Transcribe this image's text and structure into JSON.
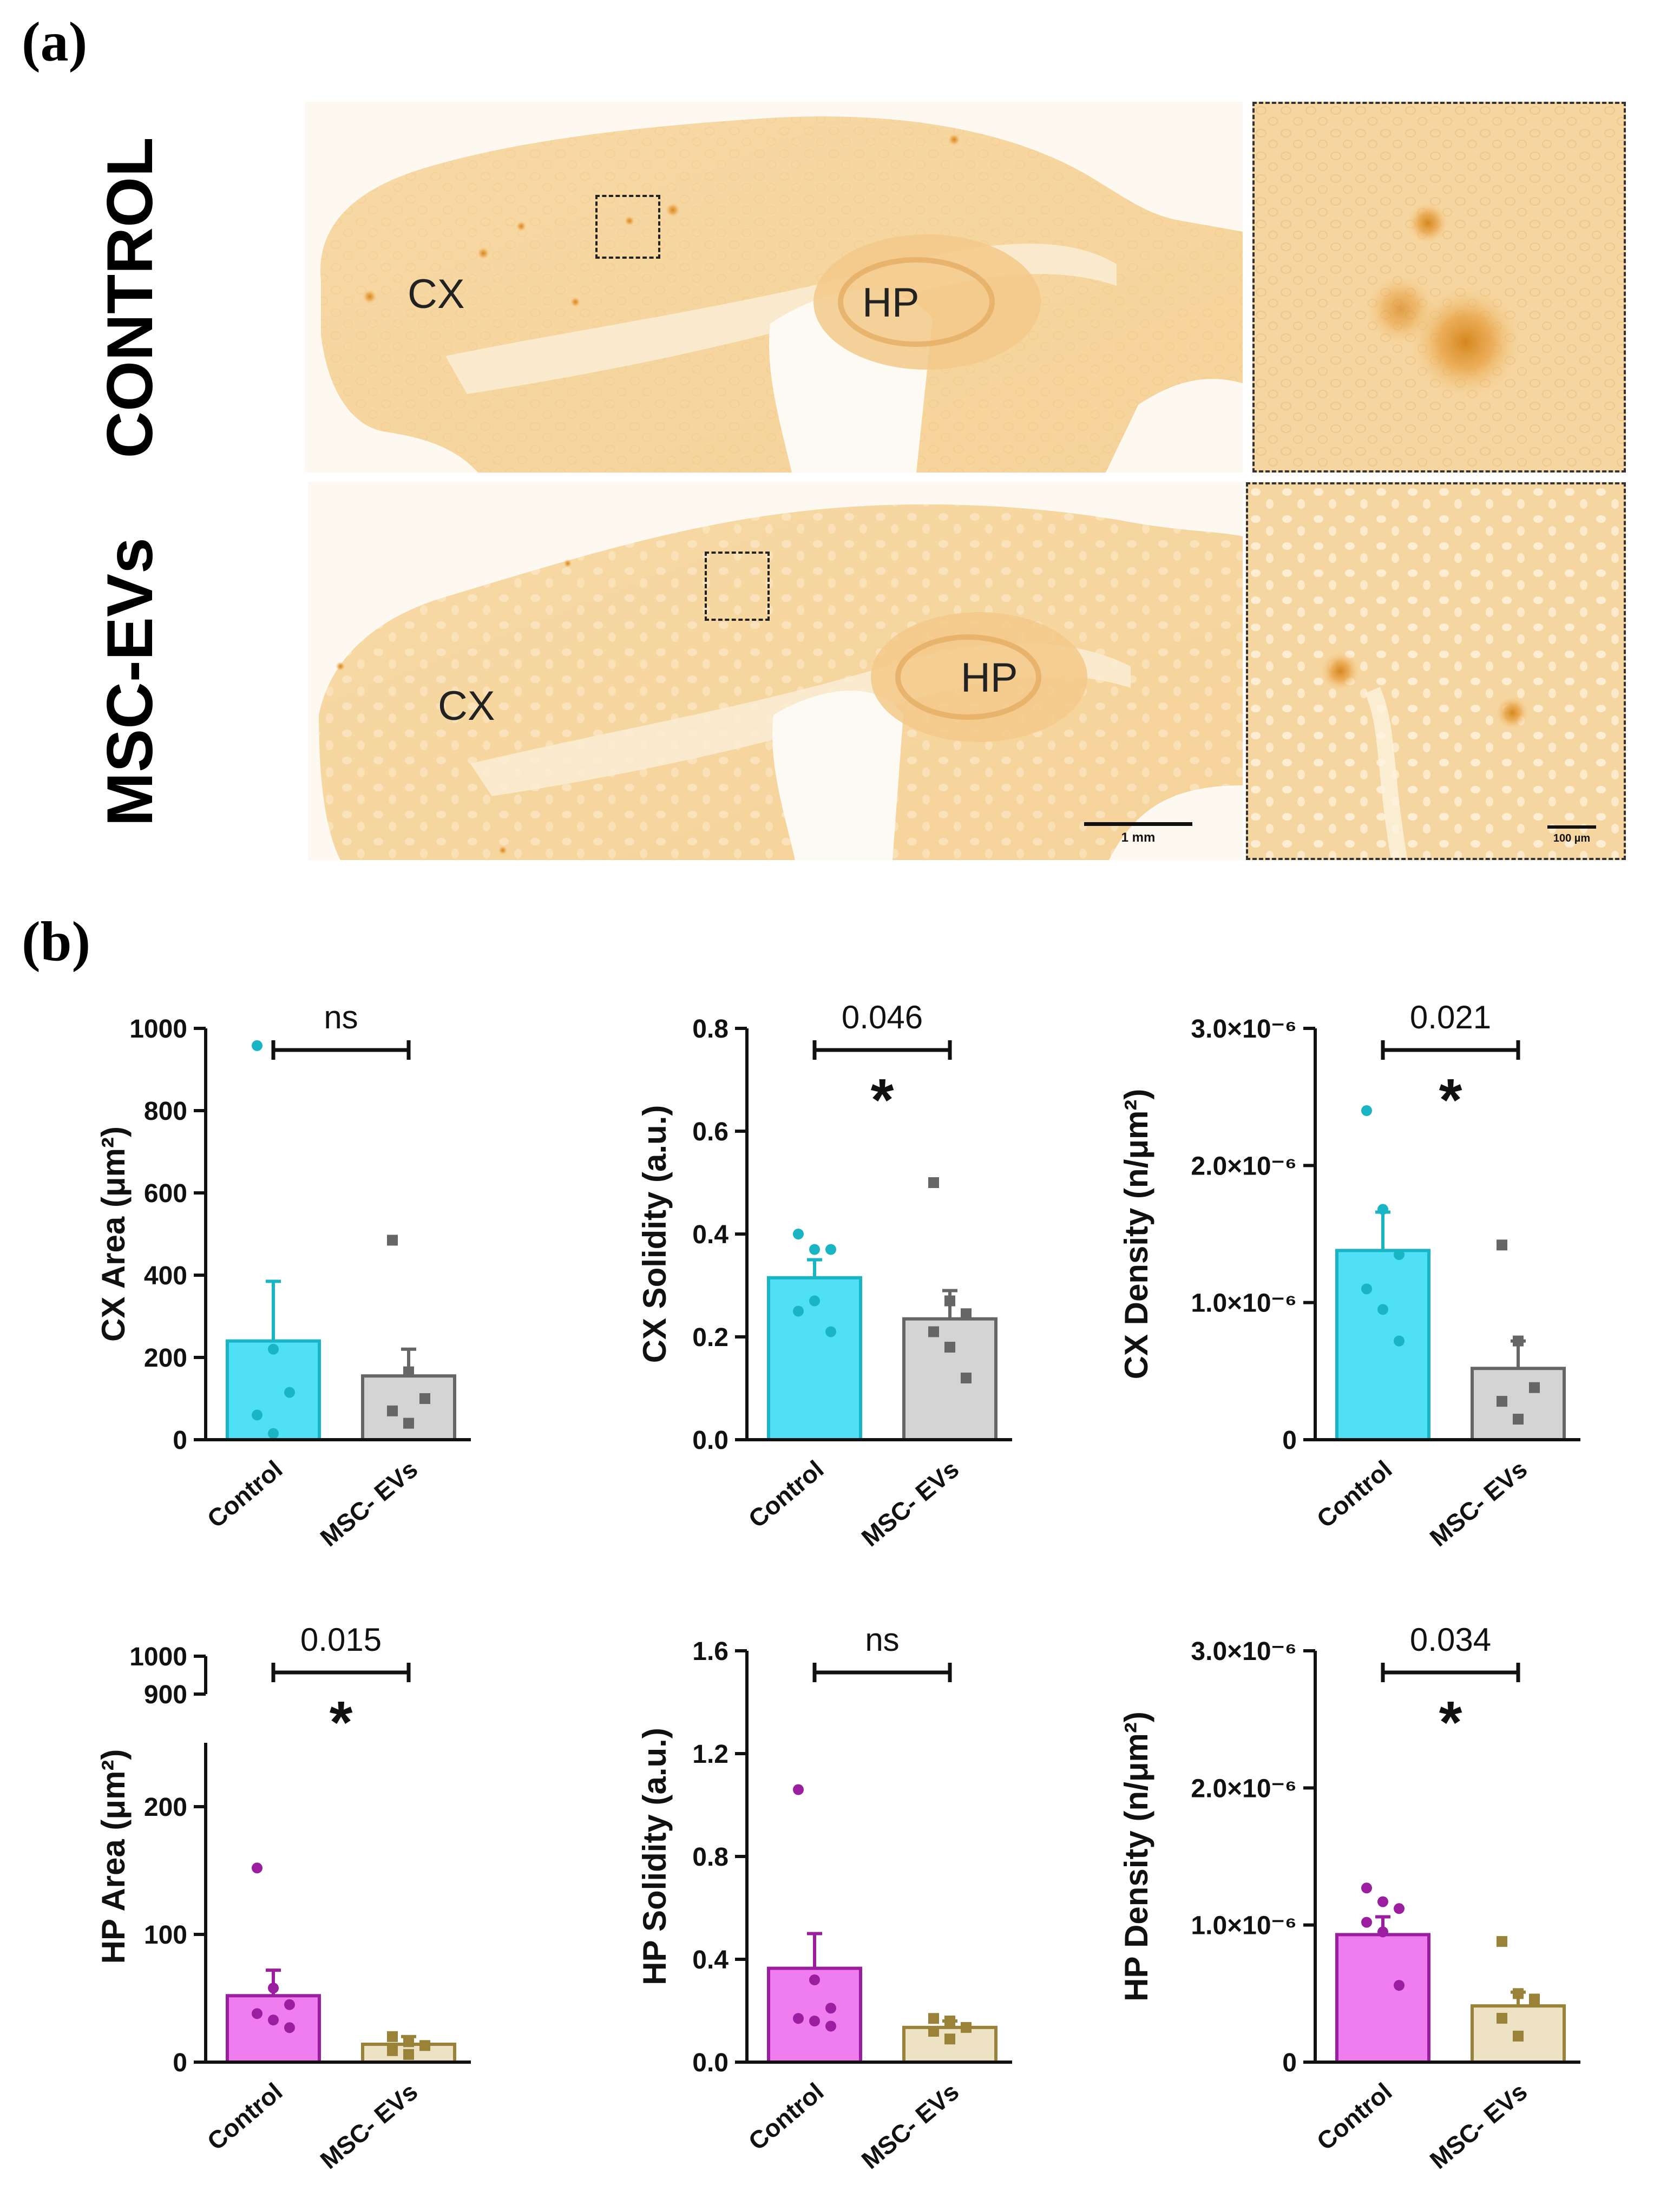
{
  "panel_a": {
    "label": "(a)",
    "rows": [
      {
        "name": "CONTROL",
        "regions": [
          "CX",
          "HP"
        ],
        "scale_bar": "",
        "inset_scale_bar": ""
      },
      {
        "name": "MSC-EVs",
        "regions": [
          "CX",
          "HP"
        ],
        "scale_bar": "1 mm",
        "inset_scale_bar": "100 µm"
      }
    ]
  },
  "panel_b": {
    "label": "(b)"
  },
  "colors": {
    "cx_control_fill": "#4fe0f5",
    "cx_control_edge": "#1ab5c4",
    "hp_control_fill": "#f07df0",
    "hp_control_edge": "#9b1ea0",
    "msc_cx_fill": "#d4d4d4",
    "msc_cx_edge": "#666666",
    "msc_hp_fill": "#ede3c4",
    "msc_hp_edge": "#9a8338",
    "tissue": "#f6d9a8",
    "stain": "#e8a040"
  },
  "chart_data": [
    {
      "id": "cx_area",
      "type": "bar",
      "categories": [
        "Control",
        "MSC- EVs"
      ],
      "ylabel": "CX Area (μm²)",
      "ylim": [
        0,
        1000
      ],
      "yticks": [
        0,
        200,
        400,
        600,
        800,
        1000
      ],
      "tick_labels": [
        "0",
        "200",
        "400",
        "600",
        "800",
        "1000"
      ],
      "values": [
        240,
        155
      ],
      "sem": [
        145,
        65
      ],
      "points": [
        [
          958,
          220,
          115,
          60,
          15
        ],
        [
          485,
          165,
          100,
          70,
          40
        ]
      ],
      "comparison": "ns",
      "significance": ""
    },
    {
      "id": "cx_solidity",
      "type": "bar",
      "categories": [
        "Control",
        "MSC- EVs"
      ],
      "ylabel": "CX Solidity (a.u.)",
      "ylim": [
        0,
        0.8
      ],
      "yticks": [
        0,
        0.2,
        0.4,
        0.6,
        0.8
      ],
      "tick_labels": [
        "0.0",
        "0.2",
        "0.4",
        "0.6",
        "0.8"
      ],
      "values": [
        0.315,
        0.235
      ],
      "sem": [
        0.035,
        0.055
      ],
      "points": [
        [
          0.4,
          0.37,
          0.37,
          0.25,
          0.27,
          0.21
        ],
        [
          0.5,
          0.27,
          0.245,
          0.21,
          0.18,
          0.12
        ]
      ],
      "comparison": "0.046",
      "significance": "*"
    },
    {
      "id": "cx_density",
      "type": "bar",
      "categories": [
        "Control",
        "MSC- EVs"
      ],
      "ylabel": "CX Density (n/μm²)",
      "ylim": [
        0,
        3e-06
      ],
      "yticks": [
        0,
        1e-06,
        2e-06,
        3e-06
      ],
      "tick_labels": [
        "0",
        "1.0×10⁻⁶",
        "2.0×10⁻⁶",
        "3.0×10⁻⁶"
      ],
      "values": [
        1.38e-06,
        5.2e-07
      ],
      "sem": [
        2.8e-07,
        2e-07
      ],
      "points": [
        [
          2.4e-06,
          1.68e-06,
          1.35e-06,
          1.1e-06,
          9.5e-07,
          7.2e-07
        ],
        [
          1.42e-06,
          7.2e-07,
          3.8e-07,
          2.8e-07,
          1.5e-07
        ]
      ],
      "comparison": "0.021",
      "significance": "*"
    },
    {
      "id": "hp_area",
      "type": "bar",
      "categories": [
        "Control",
        "MSC- EVs"
      ],
      "ylabel": "HP Area (μm²)",
      "ylim": [
        0,
        1000
      ],
      "yticks": [
        0,
        100,
        200,
        900,
        1000
      ],
      "tick_labels": [
        "0",
        "100",
        "200",
        "900",
        "1000"
      ],
      "axis_break": [
        250,
        900
      ],
      "values": [
        52,
        14
      ],
      "sem": [
        20,
        6
      ],
      "points": [
        [
          152,
          58,
          45,
          38,
          33,
          27
        ],
        [
          20,
          16,
          13,
          9,
          6
        ]
      ],
      "comparison": "0.015",
      "significance": "*"
    },
    {
      "id": "hp_solidity",
      "type": "bar",
      "categories": [
        "Control",
        "MSC- EVs"
      ],
      "ylabel": "HP Solidity (a.u.)",
      "ylim": [
        0,
        1.6
      ],
      "yticks": [
        0,
        0.4,
        0.8,
        1.2,
        1.6
      ],
      "tick_labels": [
        "0.0",
        "0.4",
        "0.8",
        "1.2",
        "1.6"
      ],
      "values": [
        0.365,
        0.135
      ],
      "sem": [
        0.135,
        0.025
      ],
      "points": [
        [
          1.06,
          0.32,
          0.21,
          0.17,
          0.16,
          0.14
        ],
        [
          0.17,
          0.16,
          0.135,
          0.12,
          0.09
        ]
      ],
      "comparison": "ns",
      "significance": ""
    },
    {
      "id": "hp_density",
      "type": "bar",
      "categories": [
        "Control",
        "MSC- EVs"
      ],
      "ylabel": "HP Density (n/μm²)",
      "ylim": [
        0,
        3e-06
      ],
      "yticks": [
        0,
        1e-06,
        2e-06,
        3e-06
      ],
      "tick_labels": [
        "0",
        "1.0×10⁻⁶",
        "2.0×10⁻⁶",
        "3.0×10⁻⁶"
      ],
      "values": [
        9.3e-07,
        4.1e-07
      ],
      "sem": [
        1.3e-07,
        1e-07
      ],
      "points": [
        [
          1.27e-06,
          1.17e-06,
          1.12e-06,
          1.02e-06,
          9.5e-07,
          5.6e-07
        ],
        [
          8.8e-07,
          5e-07,
          4.6e-07,
          3.2e-07,
          1.9e-07
        ]
      ],
      "comparison": "0.034",
      "significance": "*"
    }
  ]
}
